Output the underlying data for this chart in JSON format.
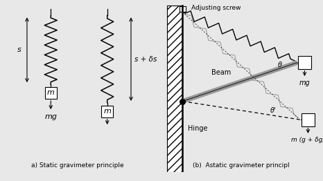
{
  "bg_color": "#e8e8e8",
  "label_a": "a) Static gravimeter principle",
  "label_b": "(b)  Astatic gravimeter principl",
  "spring1_label": "s",
  "spring2_label": "s + δs",
  "mass_label": "m",
  "force_label": "mg",
  "adj_screw_label": "Adjusting screw",
  "beam_label": "Beam",
  "theta_label": "θ",
  "theta2_label": "θ'",
  "hinge_label": "Hinge",
  "mass_b1_label": "mg",
  "mass_b2_label": "m (g + δg)"
}
